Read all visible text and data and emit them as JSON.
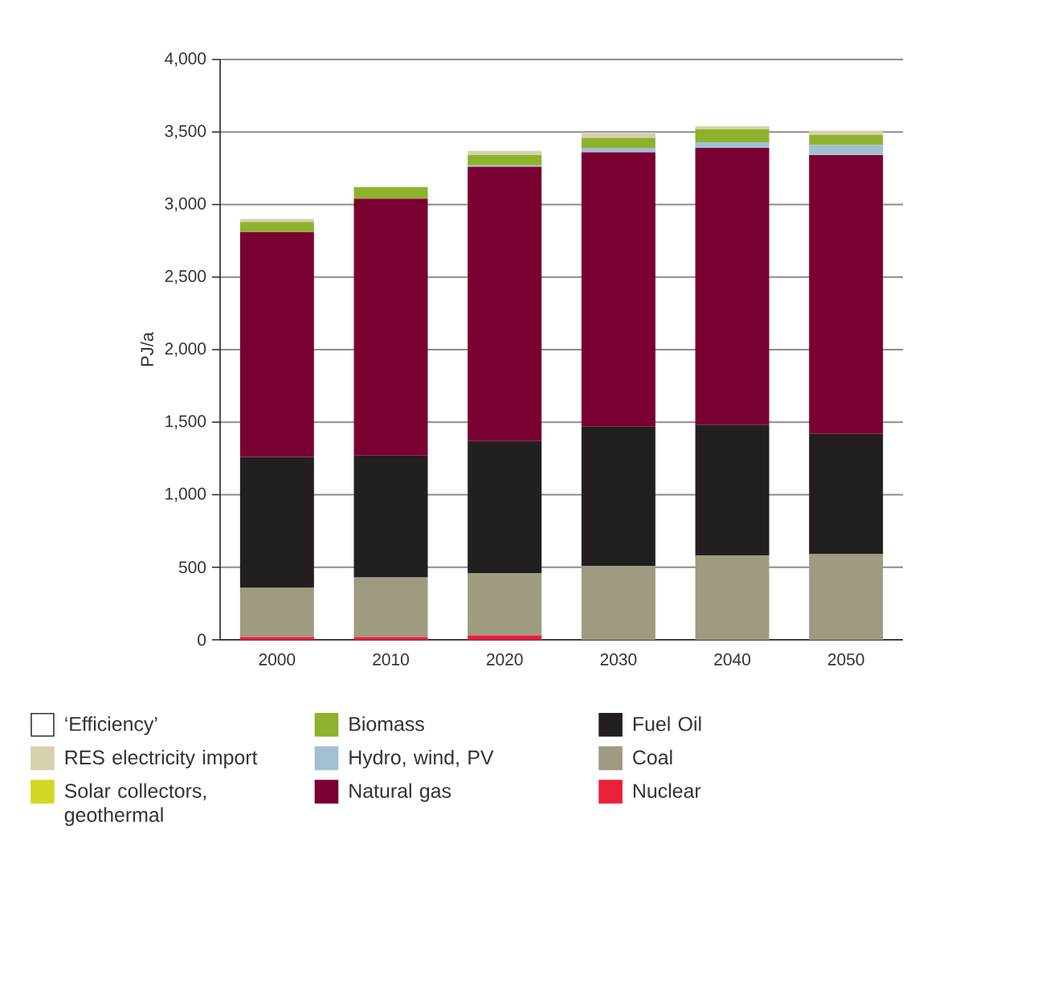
{
  "chart_data": {
    "type": "bar",
    "stacked": true,
    "categories": [
      "2000",
      "2010",
      "2020",
      "2030",
      "2040",
      "2050"
    ],
    "ylabel": "PJ/a",
    "ylim": [
      0,
      4000
    ],
    "yticks": [
      0,
      500,
      {
        "value": 1000,
        "label": "1,000"
      },
      {
        "value": 1500,
        "label": "1,500"
      },
      {
        "value": 2000,
        "label": "2,000"
      },
      {
        "value": 2500,
        "label": "2,500"
      },
      {
        "value": 3000,
        "label": "3,000"
      },
      {
        "value": 3500,
        "label": "3,500"
      },
      {
        "value": 4000,
        "label": "4,000"
      }
    ],
    "grid": "y",
    "legend": "bottom",
    "series": [
      {
        "name": "Nuclear",
        "color": "#e8203a",
        "values": [
          20,
          20,
          30,
          0,
          0,
          0
        ]
      },
      {
        "name": "Coal",
        "color": "#9e9b80",
        "values": [
          340,
          410,
          430,
          510,
          580,
          590
        ]
      },
      {
        "name": "Fuel Oil",
        "color": "#231f20",
        "values": [
          900,
          840,
          910,
          960,
          900,
          830
        ]
      },
      {
        "name": "Natural gas",
        "color": "#7a0032",
        "values": [
          1550,
          1770,
          1890,
          1890,
          1910,
          1920
        ]
      },
      {
        "name": "Hydro, wind, PV",
        "color": "#a3bfd4",
        "values": [
          0,
          0,
          10,
          30,
          40,
          70
        ]
      },
      {
        "name": "Biomass",
        "color": "#8db32d",
        "values": [
          70,
          80,
          70,
          70,
          90,
          70
        ]
      },
      {
        "name": "Solar collectors, geothermal",
        "color": "#d2d824",
        "values": [
          0,
          0,
          0,
          0,
          0,
          0
        ]
      },
      {
        "name": "RES electricity import",
        "color": "#d6d1ad",
        "values": [
          20,
          0,
          30,
          30,
          20,
          30
        ]
      },
      {
        "name": "‘Efficiency’",
        "color": "#ffffff",
        "values": [
          0,
          0,
          0,
          0,
          0,
          0
        ]
      }
    ]
  }
}
